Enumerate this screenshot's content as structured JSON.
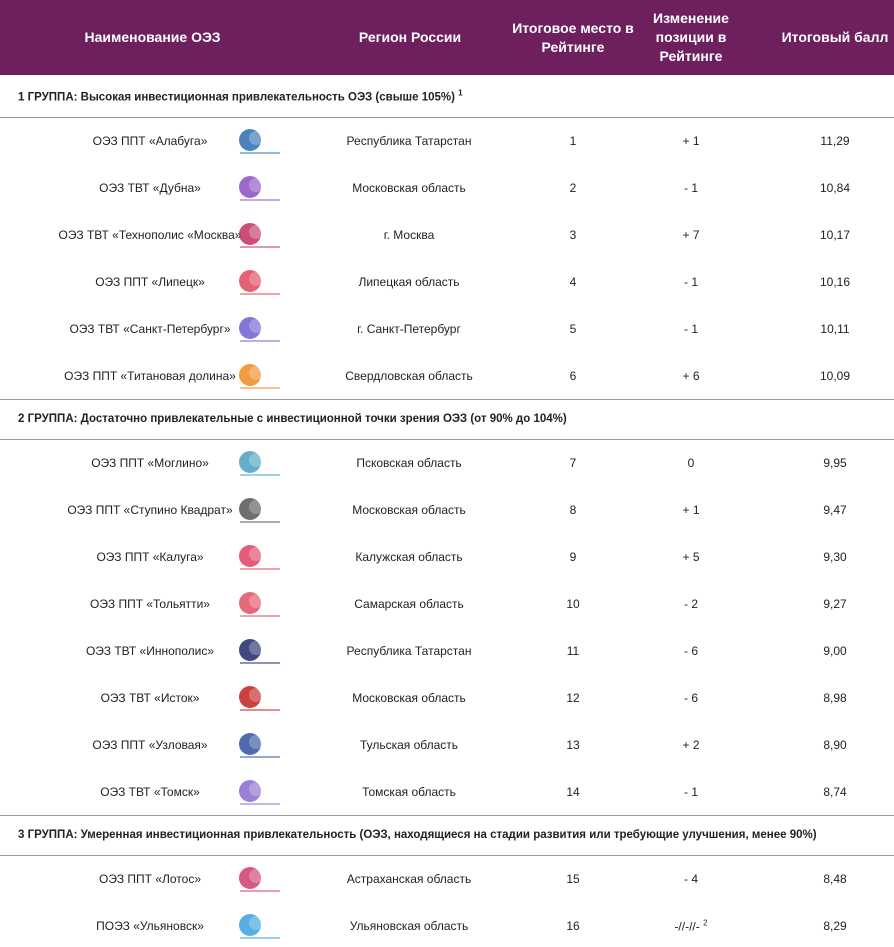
{
  "header": {
    "columns": [
      "Наименование ОЭЗ",
      "Регион России",
      "Итоговое место в Рейтинге",
      "Изменение позиции в Рейтинге",
      "Итоговый балл"
    ]
  },
  "groups": [
    {
      "title": "1 ГРУППА: Высокая инвестиционная привлекательность ОЭЗ (свыше 105%)",
      "footnote": "1",
      "rows": [
        {
          "name": "ОЭЗ ППТ «Алабуга»",
          "region": "Республика Татарстан",
          "place": 1,
          "change": "+ 1",
          "score": "11,29"
        },
        {
          "name": "ОЭЗ ТВТ «Дубна»",
          "region": "Московская область",
          "place": 2,
          "change": "- 1",
          "score": "10,84"
        },
        {
          "name": "ОЭЗ ТВТ «Технополис «Москва»",
          "region": "г. Москва",
          "place": 3,
          "change": "+ 7",
          "score": "10,17"
        },
        {
          "name": "ОЭЗ ППТ «Липецк»",
          "region": "Липецкая область",
          "place": 4,
          "change": "- 1",
          "score": "10,16"
        },
        {
          "name": "ОЭЗ ТВТ «Санкт-Петербург»",
          "region": "г. Санкт-Петербург",
          "place": 5,
          "change": "- 1",
          "score": "10,11"
        },
        {
          "name": "ОЭЗ ППТ «Титановая долина»",
          "region": "Свердловская область",
          "place": 6,
          "change": "+ 6",
          "score": "10,09"
        }
      ]
    },
    {
      "title": "2 ГРУППА: Достаточно привлекательные с инвестиционной точки зрения ОЭЗ (от 90% до 104%)",
      "rows": [
        {
          "name": "ОЭЗ ППТ «Моглино»",
          "region": "Псковская область",
          "place": 7,
          "change": "0",
          "score": "9,95"
        },
        {
          "name": "ОЭЗ ППТ «Ступино Квадрат»",
          "region": "Московская область",
          "place": 8,
          "change": "+ 1",
          "score": "9,47"
        },
        {
          "name": "ОЭЗ ППТ «Калуга»",
          "region": "Калужская область",
          "place": 9,
          "change": "+ 5",
          "score": "9,30"
        },
        {
          "name": "ОЭЗ ППТ «Тольятти»",
          "region": "Самарская область",
          "place": 10,
          "change": "- 2",
          "score": "9,27"
        },
        {
          "name": "ОЭЗ ТВТ «Иннополис»",
          "region": "Республика Татарстан",
          "place": 11,
          "change": "- 6",
          "score": "9,00"
        },
        {
          "name": "ОЭЗ ТВТ «Исток»",
          "region": "Московская область",
          "place": 12,
          "change": "- 6",
          "score": "8,98"
        },
        {
          "name": "ОЭЗ ППТ «Узловая»",
          "region": "Тульская область",
          "place": 13,
          "change": "+ 2",
          "score": "8,90"
        },
        {
          "name": "ОЭЗ ТВТ «Томск»",
          "region": "Томская область",
          "place": 14,
          "change": "- 1",
          "score": "8,74"
        }
      ]
    },
    {
      "title": "3 ГРУППА: Умеренная инвестиционная привлекательность (ОЭЗ, находящиеся на стадии развития или требующие улучшения, менее 90%)",
      "rows": [
        {
          "name": "ОЭЗ ППТ «Лотос»",
          "region": "Астраханская область",
          "place": 15,
          "change": "- 4",
          "score": "8,48"
        },
        {
          "name": "ПОЭЗ «Ульяновск»",
          "region": "Ульяновская область",
          "place": 16,
          "change": "-//-//-",
          "change_footnote": "2",
          "score": "8,29"
        }
      ]
    }
  ]
}
